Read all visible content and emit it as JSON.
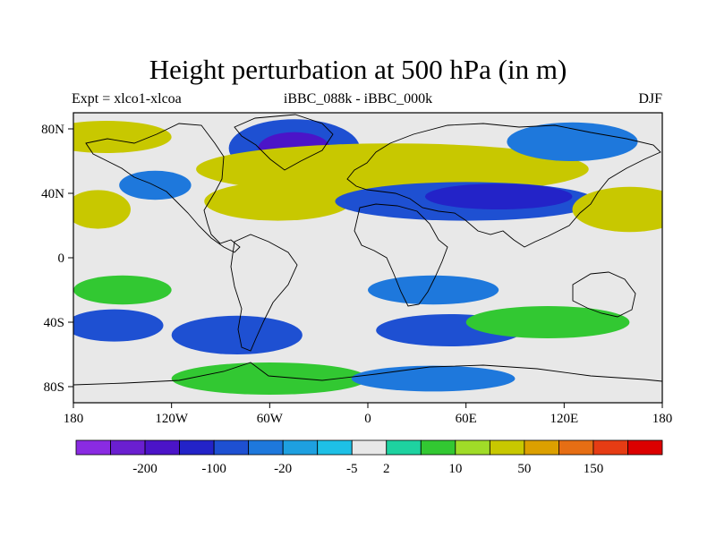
{
  "title": "Height perturbation at 500 hPa (in m)",
  "subtitle_left": "Expt = xlco1-xlcoa",
  "subtitle_center": "iBBC_088k - iBBC_000k",
  "subtitle_right": "DJF",
  "map": {
    "lon_range": [
      -180,
      180
    ],
    "lat_range": [
      -90,
      90
    ],
    "x_ticks": [
      {
        "value": -180,
        "label": "180"
      },
      {
        "value": -120,
        "label": "120W"
      },
      {
        "value": -60,
        "label": "60W"
      },
      {
        "value": 0,
        "label": "0"
      },
      {
        "value": 60,
        "label": "60E"
      },
      {
        "value": 120,
        "label": "120E"
      },
      {
        "value": 180,
        "label": "180"
      }
    ],
    "y_ticks": [
      {
        "value": 80,
        "label": "80N"
      },
      {
        "value": 40,
        "label": "40N"
      },
      {
        "value": 0,
        "label": "0"
      },
      {
        "value": -40,
        "label": "40S"
      },
      {
        "value": -80,
        "label": "80S"
      }
    ],
    "field_blobs": [
      {
        "lon": -45,
        "lat": 68,
        "rx": 40,
        "ry": 18,
        "value": -40
      },
      {
        "lon": -45,
        "lat": 68,
        "rx": 22,
        "ry": 10,
        "value": -100
      },
      {
        "lon": -130,
        "lat": 45,
        "rx": 22,
        "ry": 9,
        "value": -10
      },
      {
        "lon": -165,
        "lat": 30,
        "rx": 20,
        "ry": 12,
        "value": 50
      },
      {
        "lon": -160,
        "lat": 75,
        "rx": 40,
        "ry": 10,
        "value": 50
      },
      {
        "lon": 15,
        "lat": 55,
        "rx": 120,
        "ry": 16,
        "value": 40
      },
      {
        "lon": -55,
        "lat": 35,
        "rx": 45,
        "ry": 12,
        "value": 40
      },
      {
        "lon": 60,
        "lat": 35,
        "rx": 80,
        "ry": 12,
        "value": -20
      },
      {
        "lon": 80,
        "lat": 38,
        "rx": 45,
        "ry": 8,
        "value": -50
      },
      {
        "lon": 160,
        "lat": 30,
        "rx": 35,
        "ry": 14,
        "value": 50
      },
      {
        "lon": 125,
        "lat": 72,
        "rx": 40,
        "ry": 12,
        "value": -10
      },
      {
        "lon": -80,
        "lat": -48,
        "rx": 40,
        "ry": 12,
        "value": -40
      },
      {
        "lon": -155,
        "lat": -42,
        "rx": 30,
        "ry": 10,
        "value": -20
      },
      {
        "lon": -150,
        "lat": -20,
        "rx": 30,
        "ry": 9,
        "value": 10
      },
      {
        "lon": 50,
        "lat": -45,
        "rx": 45,
        "ry": 10,
        "value": -20
      },
      {
        "lon": 40,
        "lat": -20,
        "rx": 40,
        "ry": 9,
        "value": -10
      },
      {
        "lon": 110,
        "lat": -40,
        "rx": 50,
        "ry": 10,
        "value": 10
      },
      {
        "lon": -60,
        "lat": -75,
        "rx": 60,
        "ry": 10,
        "value": 10
      },
      {
        "lon": 40,
        "lat": -75,
        "rx": 50,
        "ry": 8,
        "value": -10
      }
    ]
  },
  "colorbar": {
    "colors": [
      "#8a2be2",
      "#6a1fd0",
      "#4b14c8",
      "#2323c8",
      "#1e50d2",
      "#1e78dc",
      "#1ea0e0",
      "#1ec0e6",
      "#e8e8e8",
      "#1ed2a0",
      "#32c832",
      "#a0dc28",
      "#c8c800",
      "#dca000",
      "#e66e14",
      "#e63c14",
      "#dc0000"
    ],
    "labels": [
      "-200",
      "-100",
      "-20",
      "-5",
      "2",
      "10",
      "50",
      "150"
    ]
  }
}
